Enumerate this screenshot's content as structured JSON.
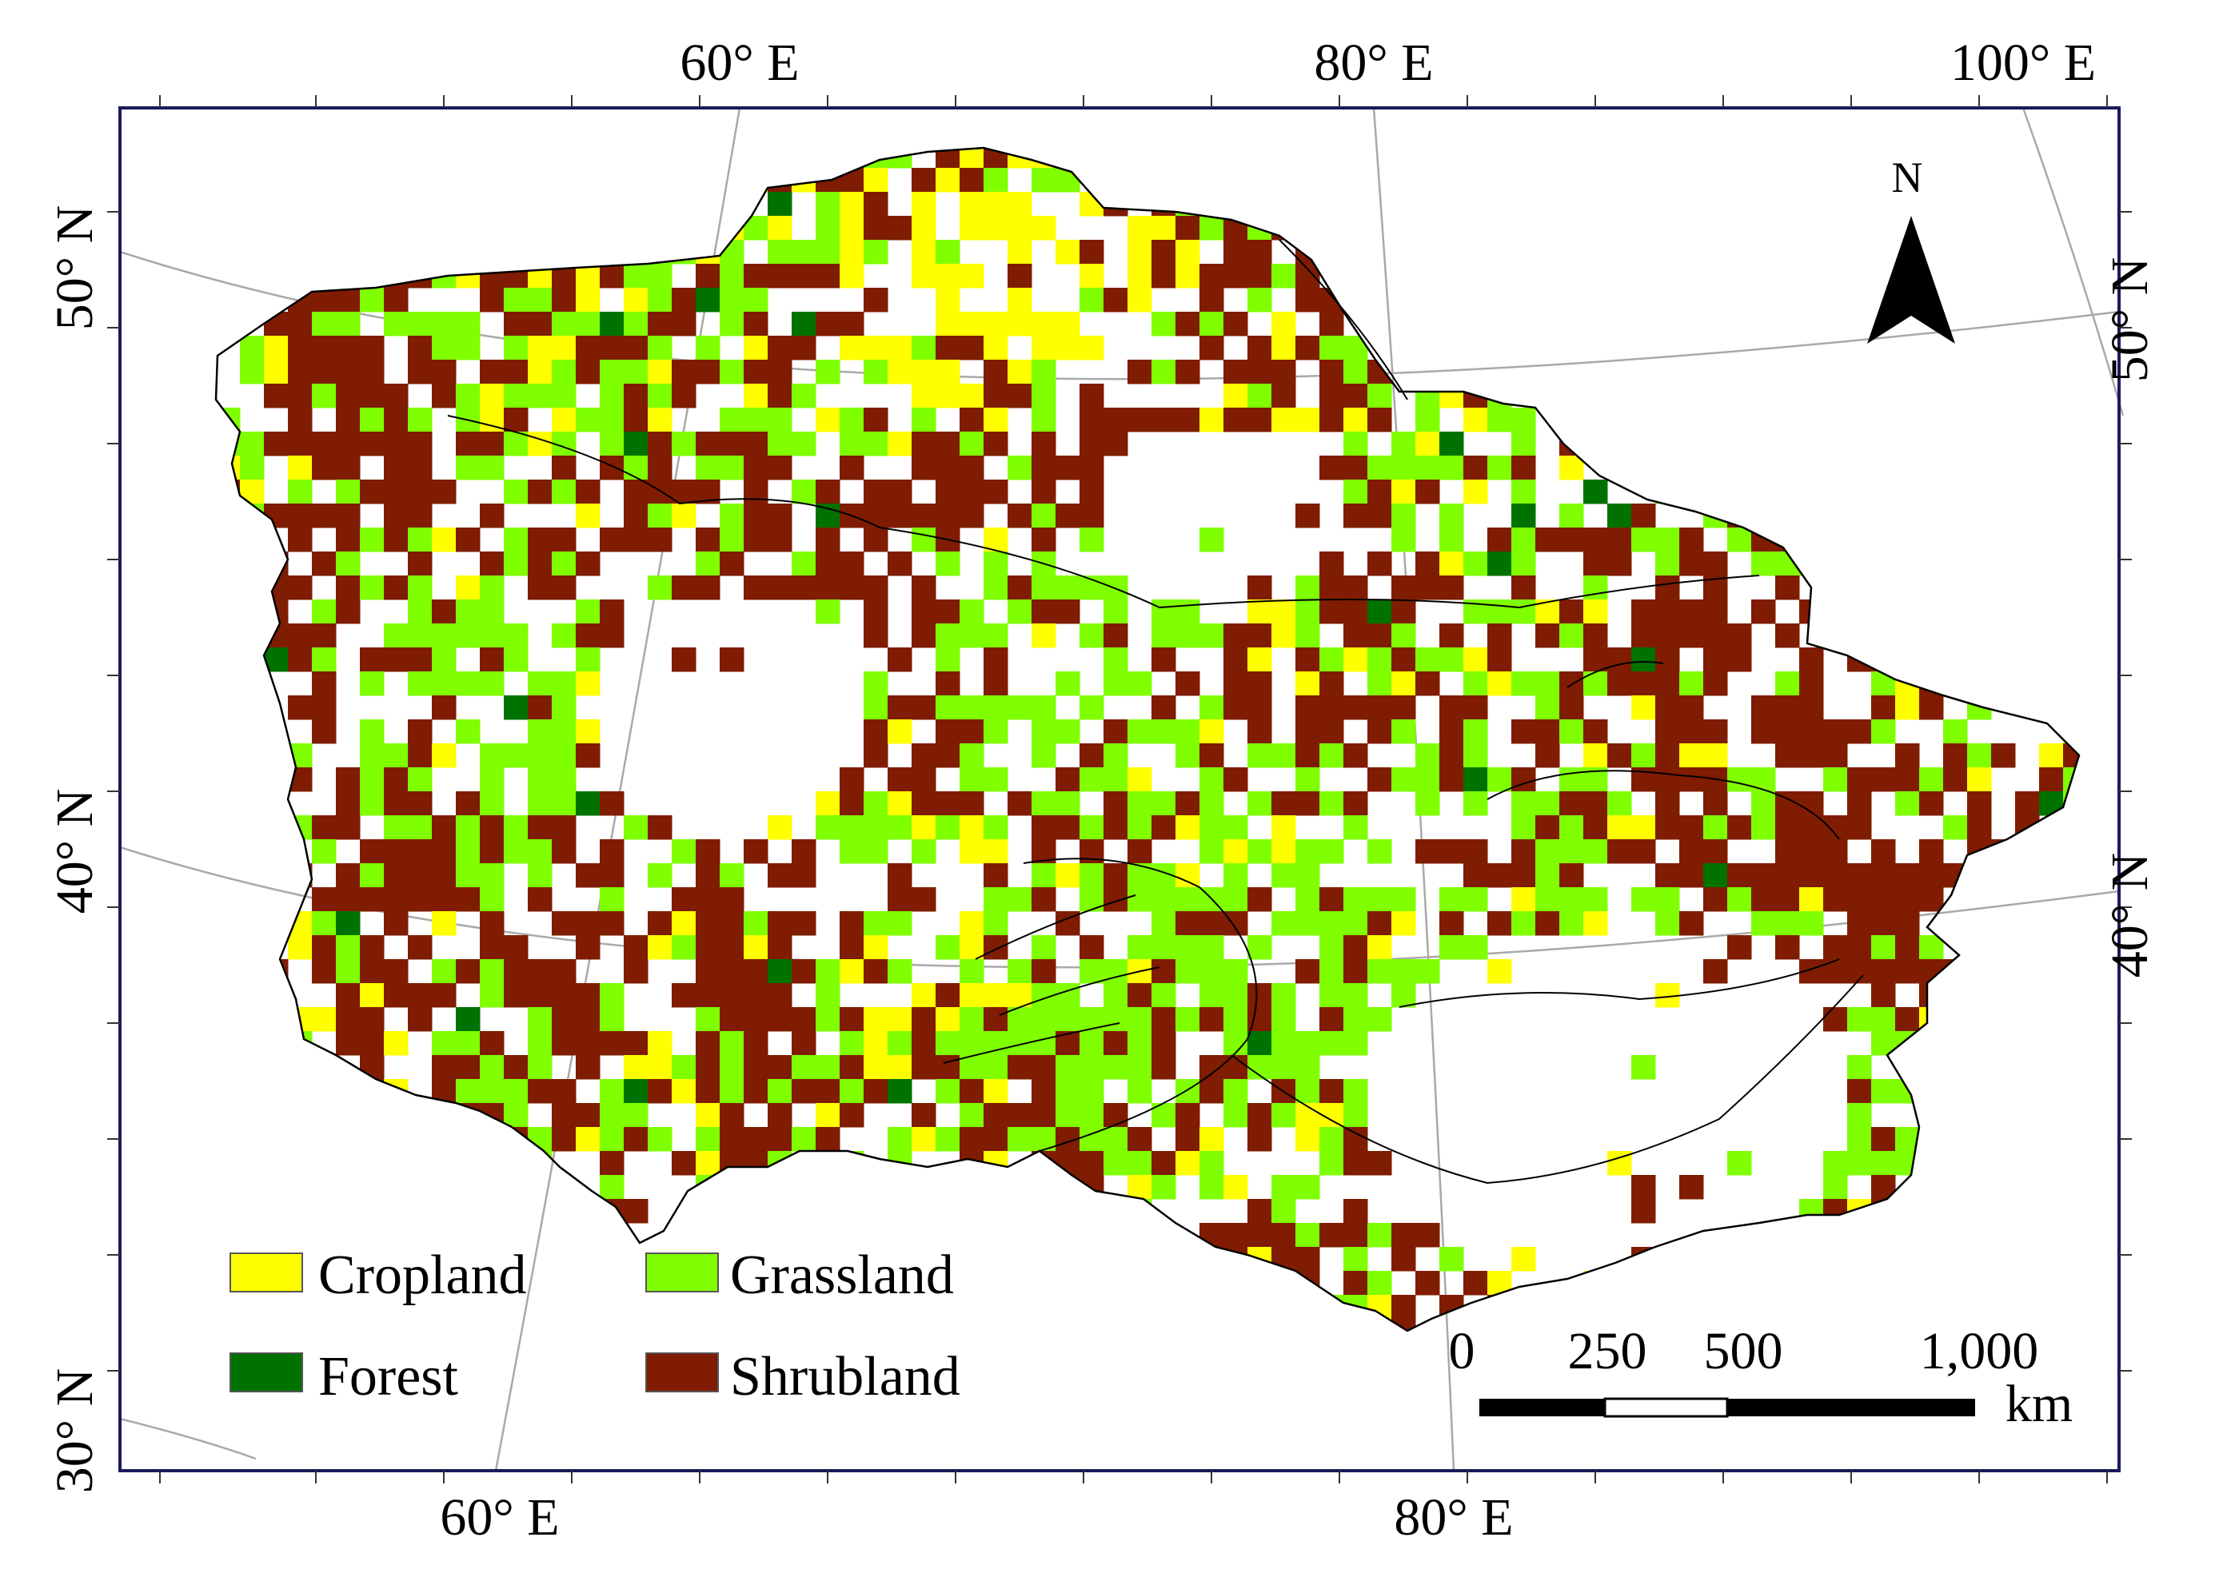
{
  "map": {
    "longitude_labels_top": [
      "60° E",
      "80° E",
      "100° E"
    ],
    "longitude_labels_bottom": [
      "60° E",
      "80° E"
    ],
    "latitude_labels_left": [
      "50° N",
      "40° N",
      "30° N"
    ],
    "latitude_labels_right": [
      "50° N",
      "40° N"
    ]
  },
  "north_arrow": {
    "label": "N"
  },
  "legend": {
    "items": [
      {
        "label": "Cropland",
        "color": "#ffff00"
      },
      {
        "label": "Grassland",
        "color": "#7fff00"
      },
      {
        "label": "Forest",
        "color": "#007200"
      },
      {
        "label": "Shrubland",
        "color": "#7f1c02"
      }
    ]
  },
  "scale_bar": {
    "ticks": [
      "0",
      "250",
      "500",
      "1,000"
    ],
    "unit": "km"
  },
  "colors": {
    "frame": "#1a1a5a",
    "graticule": "#a9a9a9",
    "outline": "#000000"
  }
}
